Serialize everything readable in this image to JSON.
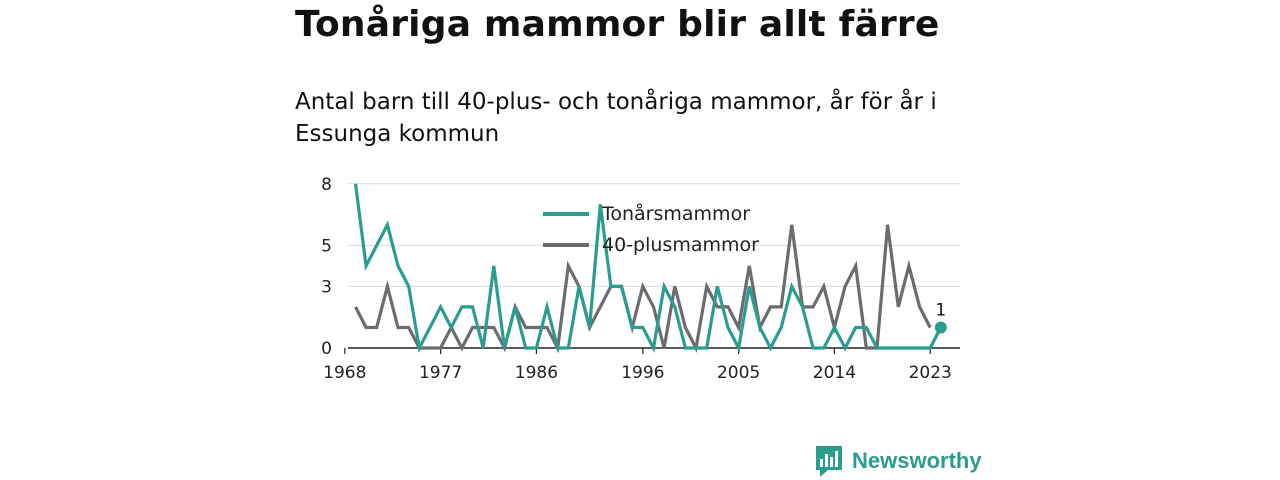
{
  "header": {
    "title": "Tonåriga mammor blir allt färre",
    "subtitle": "Antal barn till 40-plus- och tonåriga mammor, år för år i Essunga kommun"
  },
  "brand": {
    "name": "Newsworthy",
    "color": "#2a9d8f",
    "icon": "bar-chart-icon"
  },
  "chart_data": {
    "type": "line",
    "x": [
      1969,
      1970,
      1971,
      1972,
      1973,
      1974,
      1975,
      1976,
      1977,
      1978,
      1979,
      1980,
      1981,
      1982,
      1983,
      1984,
      1985,
      1986,
      1987,
      1988,
      1989,
      1990,
      1991,
      1992,
      1993,
      1994,
      1995,
      1996,
      1997,
      1998,
      1999,
      2000,
      2001,
      2002,
      2003,
      2004,
      2005,
      2006,
      2007,
      2008,
      2009,
      2010,
      2011,
      2012,
      2013,
      2014,
      2015,
      2016,
      2017,
      2018,
      2019,
      2020,
      2021,
      2022,
      2023,
      2024
    ],
    "series": [
      {
        "name": "Tonårsmammor",
        "color": "#2a9d8f",
        "values": [
          8,
          4,
          5,
          6,
          4,
          3,
          0,
          1,
          2,
          1,
          2,
          2,
          0,
          4,
          0,
          2,
          0,
          0,
          2,
          0,
          0,
          3,
          1,
          7,
          3,
          3,
          1,
          1,
          0,
          3,
          2,
          0,
          0,
          0,
          3,
          1,
          0,
          3,
          1,
          0,
          1,
          3,
          2,
          0,
          0,
          1,
          0,
          1,
          1,
          0,
          0,
          0,
          0,
          0,
          0,
          1
        ]
      },
      {
        "name": "40-plusmammor",
        "color": "#6b6b70",
        "values": [
          2,
          1,
          1,
          3,
          1,
          1,
          0,
          0,
          0,
          1,
          0,
          1,
          1,
          1,
          0,
          2,
          1,
          1,
          1,
          0,
          4,
          3,
          1,
          2,
          3,
          3,
          1,
          3,
          2,
          0,
          3,
          1,
          0,
          3,
          2,
          2,
          1,
          4,
          1,
          2,
          2,
          6,
          2,
          2,
          3,
          1,
          3,
          4,
          0,
          0,
          6,
          2,
          4,
          2,
          1,
          null
        ]
      }
    ],
    "xticks": [
      1968,
      1977,
      1986,
      1996,
      2005,
      2014,
      2023
    ],
    "ytick_labels": [
      "0",
      "3",
      "5",
      "8"
    ],
    "ylim": [
      0,
      7.6
    ],
    "grid": true,
    "legend": "top-center",
    "annotation": {
      "x": 2024,
      "label": "1"
    }
  }
}
